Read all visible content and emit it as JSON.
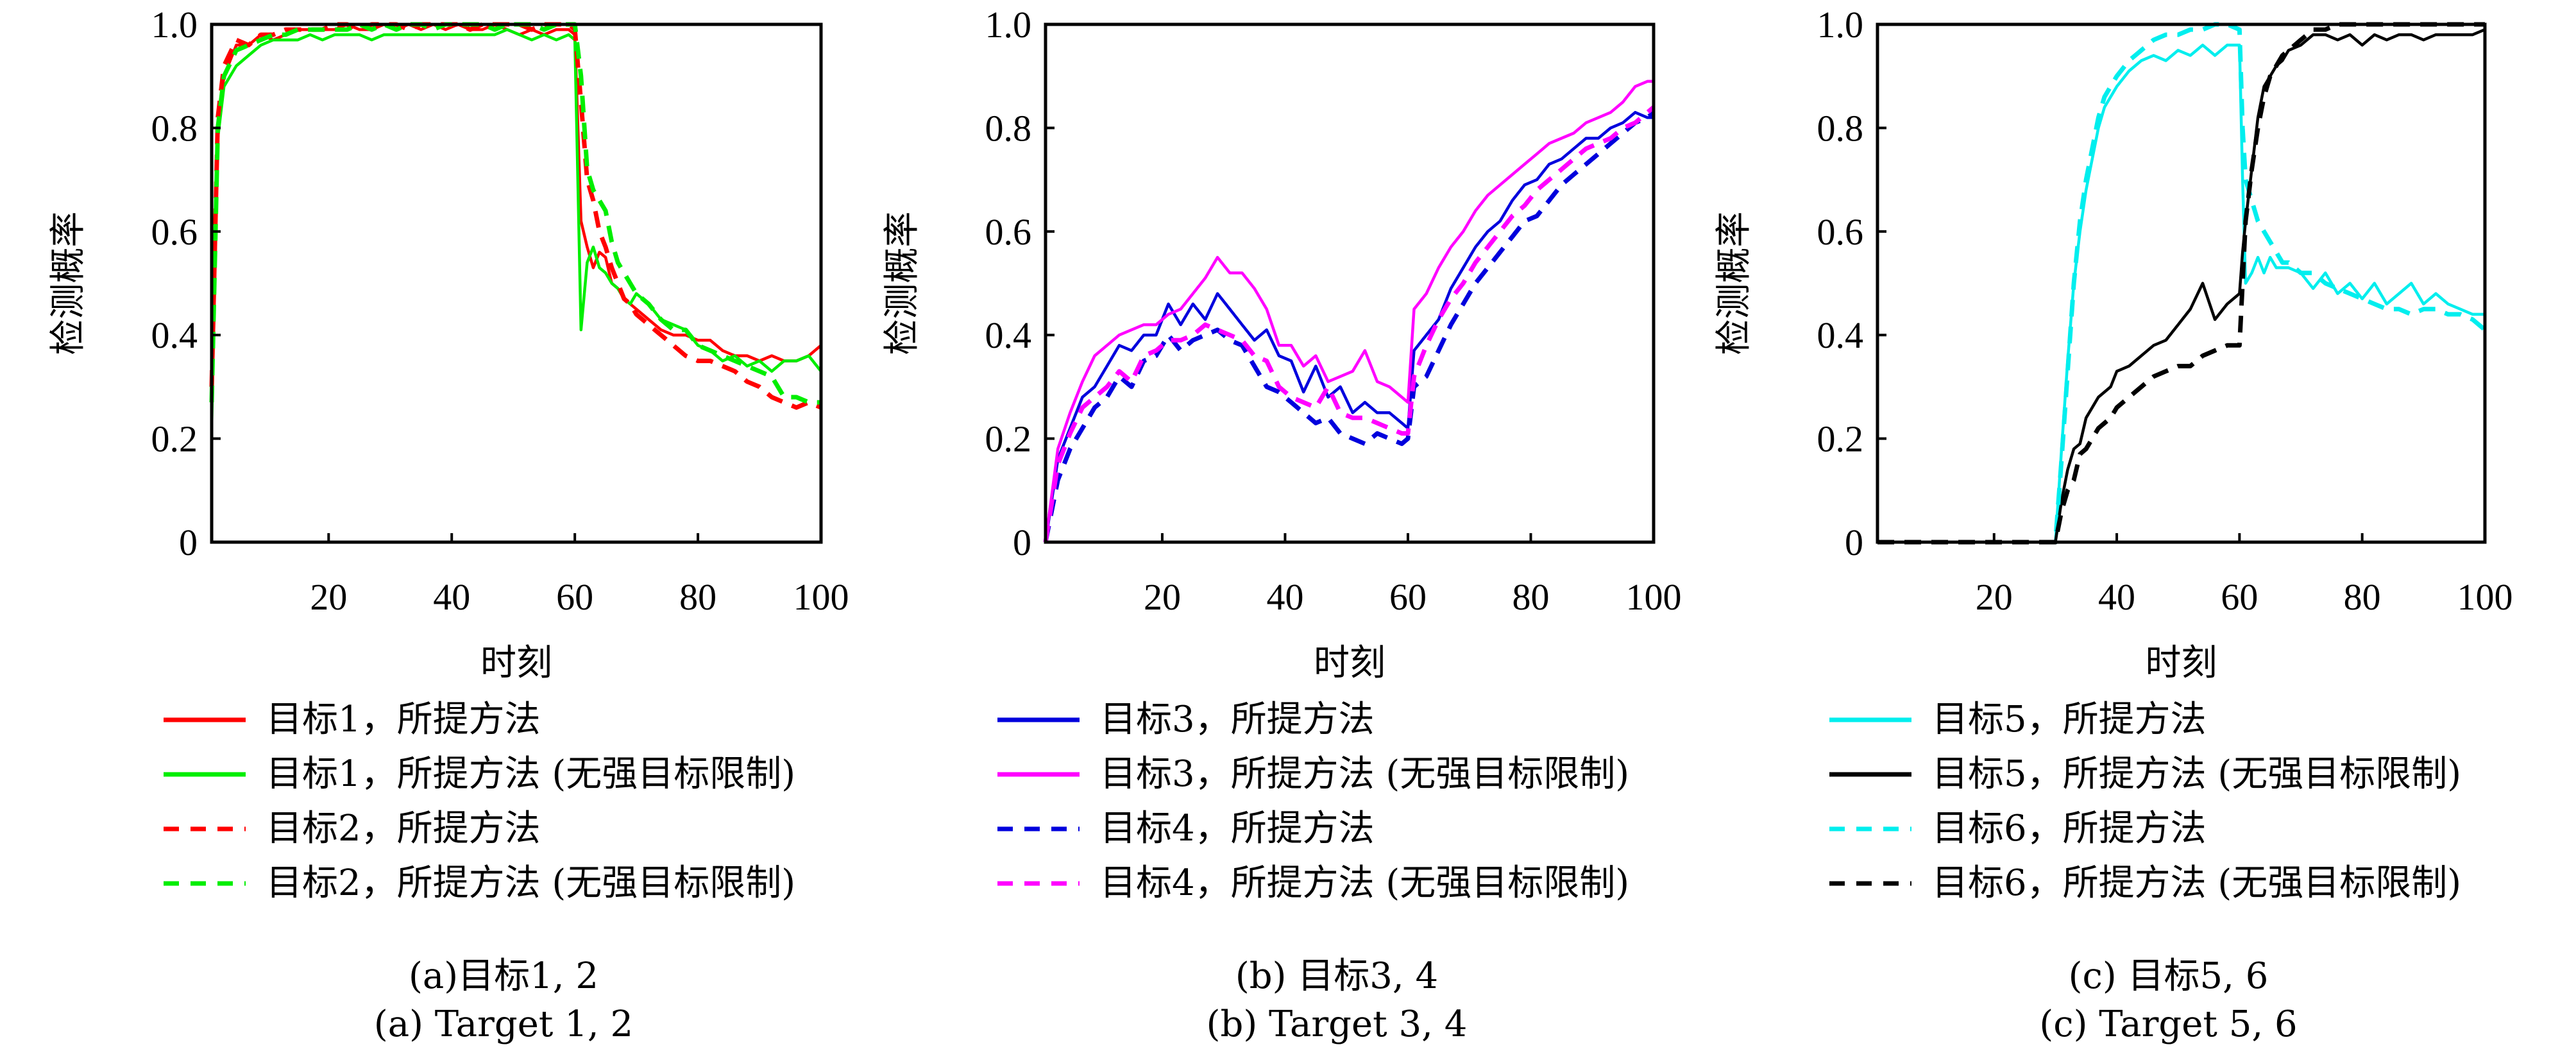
{
  "chart_data": [
    {
      "type": "line",
      "id": "a",
      "xlabel": "时刻",
      "ylabel": "检测概率",
      "xlim": [
        1,
        100
      ],
      "ylim": [
        0,
        1.0
      ],
      "xticks": [
        20,
        40,
        60,
        80,
        100
      ],
      "xtick_labels": [
        "20",
        "40",
        "60",
        "80",
        "100"
      ],
      "yticks": [
        0,
        0.2,
        0.4,
        0.6,
        0.8,
        1.0
      ],
      "ytick_labels": [
        "0",
        "0.2",
        "0.4",
        "0.6",
        "0.8",
        "1.0"
      ],
      "grid": false,
      "caption_cn": "(a)目标1, 2",
      "caption_en": "(a) Target 1, 2",
      "x": [
        1,
        2,
        3,
        5,
        7,
        9,
        11,
        13,
        15,
        17,
        19,
        21,
        23,
        25,
        27,
        29,
        31,
        33,
        35,
        37,
        39,
        41,
        43,
        45,
        47,
        49,
        51,
        53,
        55,
        57,
        59,
        60,
        61,
        62,
        63,
        64,
        65,
        66,
        67,
        68,
        69,
        70,
        72,
        74,
        76,
        78,
        80,
        82,
        84,
        86,
        88,
        90,
        92,
        94,
        96,
        98,
        100
      ],
      "series": [
        {
          "name": "目标1，所提方法",
          "color": "#ff0000",
          "dash": "solid",
          "values": [
            0.25,
            0.8,
            0.9,
            0.96,
            0.96,
            0.98,
            0.97,
            0.98,
            0.99,
            0.99,
            0.99,
            0.99,
            1.0,
            0.99,
            0.99,
            1.0,
            0.99,
            1.0,
            0.99,
            1.0,
            0.99,
            1.0,
            0.99,
            0.99,
            1.0,
            0.99,
            0.98,
            0.99,
            0.98,
            0.99,
            0.99,
            0.98,
            0.62,
            0.57,
            0.53,
            0.56,
            0.55,
            0.5,
            0.49,
            0.47,
            0.46,
            0.45,
            0.43,
            0.41,
            0.4,
            0.4,
            0.39,
            0.39,
            0.37,
            0.36,
            0.36,
            0.35,
            0.36,
            0.35,
            0.35,
            0.36,
            0.38
          ]
        },
        {
          "name": "目标1，所提方法 (无强目标限制)",
          "color": "#00ee00",
          "dash": "solid",
          "values": [
            0.22,
            0.78,
            0.88,
            0.92,
            0.94,
            0.96,
            0.97,
            0.97,
            0.97,
            0.98,
            0.97,
            0.98,
            0.98,
            0.98,
            0.97,
            0.98,
            0.98,
            0.98,
            0.98,
            0.98,
            0.98,
            0.98,
            0.98,
            0.98,
            0.98,
            0.99,
            0.98,
            0.97,
            0.98,
            0.97,
            0.98,
            0.97,
            0.41,
            0.54,
            0.57,
            0.53,
            0.52,
            0.5,
            0.49,
            0.47,
            0.46,
            0.48,
            0.46,
            0.43,
            0.42,
            0.41,
            0.38,
            0.37,
            0.35,
            0.36,
            0.34,
            0.35,
            0.33,
            0.35,
            0.35,
            0.36,
            0.33
          ]
        },
        {
          "name": "目标2，所提方法",
          "color": "#ff0000",
          "dash": "dashed",
          "values": [
            0.3,
            0.82,
            0.92,
            0.97,
            0.96,
            0.98,
            0.98,
            0.99,
            0.99,
            0.99,
            0.99,
            1.0,
            1.0,
            0.99,
            1.0,
            1.0,
            1.0,
            0.99,
            1.0,
            1.0,
            1.0,
            1.0,
            0.99,
            1.0,
            1.0,
            1.0,
            1.0,
            0.99,
            1.0,
            1.0,
            1.0,
            0.99,
            0.85,
            0.7,
            0.66,
            0.6,
            0.57,
            0.53,
            0.5,
            0.47,
            0.46,
            0.44,
            0.42,
            0.4,
            0.38,
            0.36,
            0.35,
            0.35,
            0.34,
            0.33,
            0.31,
            0.3,
            0.28,
            0.27,
            0.26,
            0.27,
            0.26
          ]
        },
        {
          "name": "目标2，所提方法 (无强目标限制)",
          "color": "#00ee00",
          "dash": "dashed",
          "values": [
            0.27,
            0.8,
            0.9,
            0.95,
            0.96,
            0.97,
            0.98,
            0.98,
            0.99,
            0.99,
            0.99,
            0.99,
            0.99,
            1.0,
            0.99,
            1.0,
            0.99,
            1.0,
            1.0,
            0.99,
            1.0,
            1.0,
            1.0,
            1.0,
            0.99,
            1.0,
            1.0,
            1.0,
            0.99,
            1.0,
            1.0,
            1.0,
            0.9,
            0.72,
            0.68,
            0.66,
            0.64,
            0.58,
            0.54,
            0.52,
            0.5,
            0.48,
            0.46,
            0.43,
            0.41,
            0.41,
            0.38,
            0.37,
            0.36,
            0.35,
            0.34,
            0.33,
            0.32,
            0.28,
            0.28,
            0.27,
            0.27
          ]
        }
      ]
    },
    {
      "type": "line",
      "id": "b",
      "xlabel": "时刻",
      "ylabel": "检测概率",
      "xlim": [
        1,
        100
      ],
      "ylim": [
        0,
        1.0
      ],
      "xticks": [
        20,
        40,
        60,
        80,
        100
      ],
      "xtick_labels": [
        "20",
        "40",
        "60",
        "80",
        "100"
      ],
      "yticks": [
        0,
        0.2,
        0.4,
        0.6,
        0.8,
        1.0
      ],
      "ytick_labels": [
        "0",
        "0.2",
        "0.4",
        "0.6",
        "0.8",
        "1.0"
      ],
      "grid": false,
      "caption_cn": "(b) 目标3, 4",
      "caption_en": "(b) Target 3, 4",
      "x": [
        1,
        3,
        5,
        7,
        9,
        11,
        13,
        15,
        17,
        19,
        21,
        23,
        25,
        27,
        29,
        31,
        33,
        35,
        37,
        39,
        41,
        43,
        45,
        47,
        49,
        51,
        53,
        55,
        57,
        59,
        60,
        61,
        63,
        65,
        67,
        69,
        71,
        73,
        75,
        77,
        79,
        81,
        83,
        85,
        87,
        89,
        91,
        93,
        95,
        97,
        99,
        100
      ],
      "series": [
        {
          "name": "目标3，所提方法",
          "color": "#0000dd",
          "dash": "solid",
          "values": [
            0.0,
            0.16,
            0.22,
            0.28,
            0.3,
            0.34,
            0.38,
            0.37,
            0.4,
            0.4,
            0.46,
            0.42,
            0.46,
            0.43,
            0.48,
            0.45,
            0.42,
            0.39,
            0.41,
            0.36,
            0.35,
            0.29,
            0.34,
            0.28,
            0.3,
            0.25,
            0.27,
            0.25,
            0.25,
            0.23,
            0.22,
            0.37,
            0.4,
            0.43,
            0.49,
            0.53,
            0.57,
            0.6,
            0.62,
            0.66,
            0.69,
            0.7,
            0.73,
            0.74,
            0.76,
            0.78,
            0.78,
            0.8,
            0.81,
            0.83,
            0.82,
            0.82
          ]
        },
        {
          "name": "目标3，所提方法 (无强目标限制)",
          "color": "#ff00ff",
          "dash": "solid",
          "values": [
            0.0,
            0.18,
            0.25,
            0.31,
            0.36,
            0.38,
            0.4,
            0.41,
            0.42,
            0.42,
            0.44,
            0.45,
            0.48,
            0.51,
            0.55,
            0.52,
            0.52,
            0.49,
            0.45,
            0.38,
            0.38,
            0.34,
            0.36,
            0.31,
            0.32,
            0.33,
            0.37,
            0.31,
            0.3,
            0.28,
            0.27,
            0.45,
            0.48,
            0.53,
            0.57,
            0.6,
            0.64,
            0.67,
            0.69,
            0.71,
            0.73,
            0.75,
            0.77,
            0.78,
            0.79,
            0.81,
            0.82,
            0.83,
            0.85,
            0.88,
            0.89,
            0.89
          ]
        },
        {
          "name": "目标4，所提方法",
          "color": "#0000dd",
          "dash": "dashed",
          "values": [
            0.0,
            0.12,
            0.18,
            0.22,
            0.26,
            0.28,
            0.32,
            0.3,
            0.35,
            0.36,
            0.4,
            0.37,
            0.39,
            0.4,
            0.41,
            0.39,
            0.38,
            0.34,
            0.3,
            0.29,
            0.27,
            0.25,
            0.23,
            0.24,
            0.21,
            0.2,
            0.19,
            0.21,
            0.2,
            0.19,
            0.2,
            0.3,
            0.32,
            0.37,
            0.42,
            0.46,
            0.5,
            0.53,
            0.56,
            0.59,
            0.62,
            0.63,
            0.66,
            0.69,
            0.71,
            0.73,
            0.75,
            0.77,
            0.79,
            0.81,
            0.82,
            0.83
          ]
        },
        {
          "name": "目标4，所提方法 (无强目标限制)",
          "color": "#ff00ff",
          "dash": "dashed",
          "values": [
            0.0,
            0.15,
            0.21,
            0.26,
            0.28,
            0.3,
            0.33,
            0.31,
            0.36,
            0.37,
            0.39,
            0.39,
            0.4,
            0.42,
            0.41,
            0.4,
            0.39,
            0.36,
            0.35,
            0.3,
            0.28,
            0.27,
            0.26,
            0.3,
            0.25,
            0.24,
            0.24,
            0.23,
            0.22,
            0.21,
            0.21,
            0.32,
            0.38,
            0.43,
            0.47,
            0.5,
            0.54,
            0.57,
            0.6,
            0.63,
            0.65,
            0.68,
            0.7,
            0.72,
            0.74,
            0.76,
            0.77,
            0.78,
            0.8,
            0.81,
            0.83,
            0.84
          ]
        }
      ]
    },
    {
      "type": "line",
      "id": "c",
      "xlabel": "时刻",
      "ylabel": "检测概率",
      "xlim": [
        1,
        100
      ],
      "ylim": [
        0,
        1.0
      ],
      "xticks": [
        20,
        40,
        60,
        80,
        100
      ],
      "xtick_labels": [
        "20",
        "40",
        "60",
        "80",
        "100"
      ],
      "yticks": [
        0,
        0.2,
        0.4,
        0.6,
        0.8,
        1.0
      ],
      "ytick_labels": [
        "0",
        "0.2",
        "0.4",
        "0.6",
        "0.8",
        "1.0"
      ],
      "grid": false,
      "caption_cn": "(c) 目标5, 6",
      "caption_en": "(c) Target 5, 6",
      "x": [
        1,
        10,
        20,
        30,
        31,
        32,
        33,
        34,
        35,
        36,
        37,
        38,
        39,
        40,
        42,
        44,
        46,
        48,
        50,
        52,
        54,
        56,
        58,
        60,
        60.5,
        61,
        62,
        63,
        64,
        65,
        66,
        67,
        68,
        70,
        72,
        74,
        76,
        78,
        80,
        82,
        84,
        86,
        88,
        90,
        92,
        94,
        96,
        98,
        100
      ],
      "series": [
        {
          "name": "目标5，所提方法",
          "color": "#00eeee",
          "dash": "solid",
          "values": [
            0,
            0,
            0,
            0,
            0.18,
            0.35,
            0.5,
            0.6,
            0.68,
            0.74,
            0.8,
            0.84,
            0.86,
            0.88,
            0.91,
            0.93,
            0.94,
            0.93,
            0.95,
            0.94,
            0.96,
            0.94,
            0.96,
            0.96,
            0.7,
            0.5,
            0.52,
            0.55,
            0.52,
            0.55,
            0.53,
            0.53,
            0.53,
            0.52,
            0.49,
            0.52,
            0.48,
            0.5,
            0.47,
            0.5,
            0.46,
            0.48,
            0.5,
            0.46,
            0.48,
            0.46,
            0.45,
            0.44,
            0.44
          ]
        },
        {
          "name": "目标5，所提方法 (无强目标限制)",
          "color": "#000000",
          "dash": "solid",
          "values": [
            0,
            0,
            0,
            0,
            0.08,
            0.14,
            0.18,
            0.19,
            0.24,
            0.26,
            0.28,
            0.29,
            0.3,
            0.33,
            0.34,
            0.36,
            0.38,
            0.39,
            0.42,
            0.45,
            0.5,
            0.43,
            0.46,
            0.48,
            0.56,
            0.62,
            0.72,
            0.82,
            0.88,
            0.9,
            0.92,
            0.93,
            0.95,
            0.96,
            0.98,
            0.98,
            0.97,
            0.98,
            0.96,
            0.98,
            0.97,
            0.98,
            0.98,
            0.97,
            0.98,
            0.98,
            0.98,
            0.98,
            0.99
          ]
        },
        {
          "name": "目标6，所提方法",
          "color": "#00eeee",
          "dash": "dashed",
          "values": [
            0,
            0,
            0,
            0,
            0.16,
            0.33,
            0.5,
            0.62,
            0.7,
            0.76,
            0.82,
            0.86,
            0.88,
            0.9,
            0.93,
            0.95,
            0.97,
            0.98,
            0.98,
            0.99,
            0.99,
            1.0,
            1.0,
            0.99,
            0.8,
            0.7,
            0.66,
            0.62,
            0.6,
            0.58,
            0.56,
            0.54,
            0.54,
            0.52,
            0.52,
            0.5,
            0.49,
            0.48,
            0.47,
            0.46,
            0.45,
            0.45,
            0.44,
            0.45,
            0.45,
            0.44,
            0.44,
            0.43,
            0.41
          ]
        },
        {
          "name": "目标6，所提方法 (无强目标限制)",
          "color": "#000000",
          "dash": "dashed",
          "values": [
            0,
            0,
            0,
            0,
            0.06,
            0.1,
            0.12,
            0.17,
            0.18,
            0.2,
            0.22,
            0.23,
            0.24,
            0.26,
            0.28,
            0.3,
            0.32,
            0.33,
            0.34,
            0.34,
            0.36,
            0.37,
            0.38,
            0.38,
            0.5,
            0.62,
            0.72,
            0.8,
            0.86,
            0.9,
            0.92,
            0.94,
            0.95,
            0.97,
            0.99,
            0.99,
            1.0,
            1.0,
            1.0,
            1.0,
            1.0,
            1.0,
            1.0,
            1.0,
            1.0,
            1.0,
            1.0,
            1.0,
            1.0
          ]
        }
      ]
    }
  ]
}
